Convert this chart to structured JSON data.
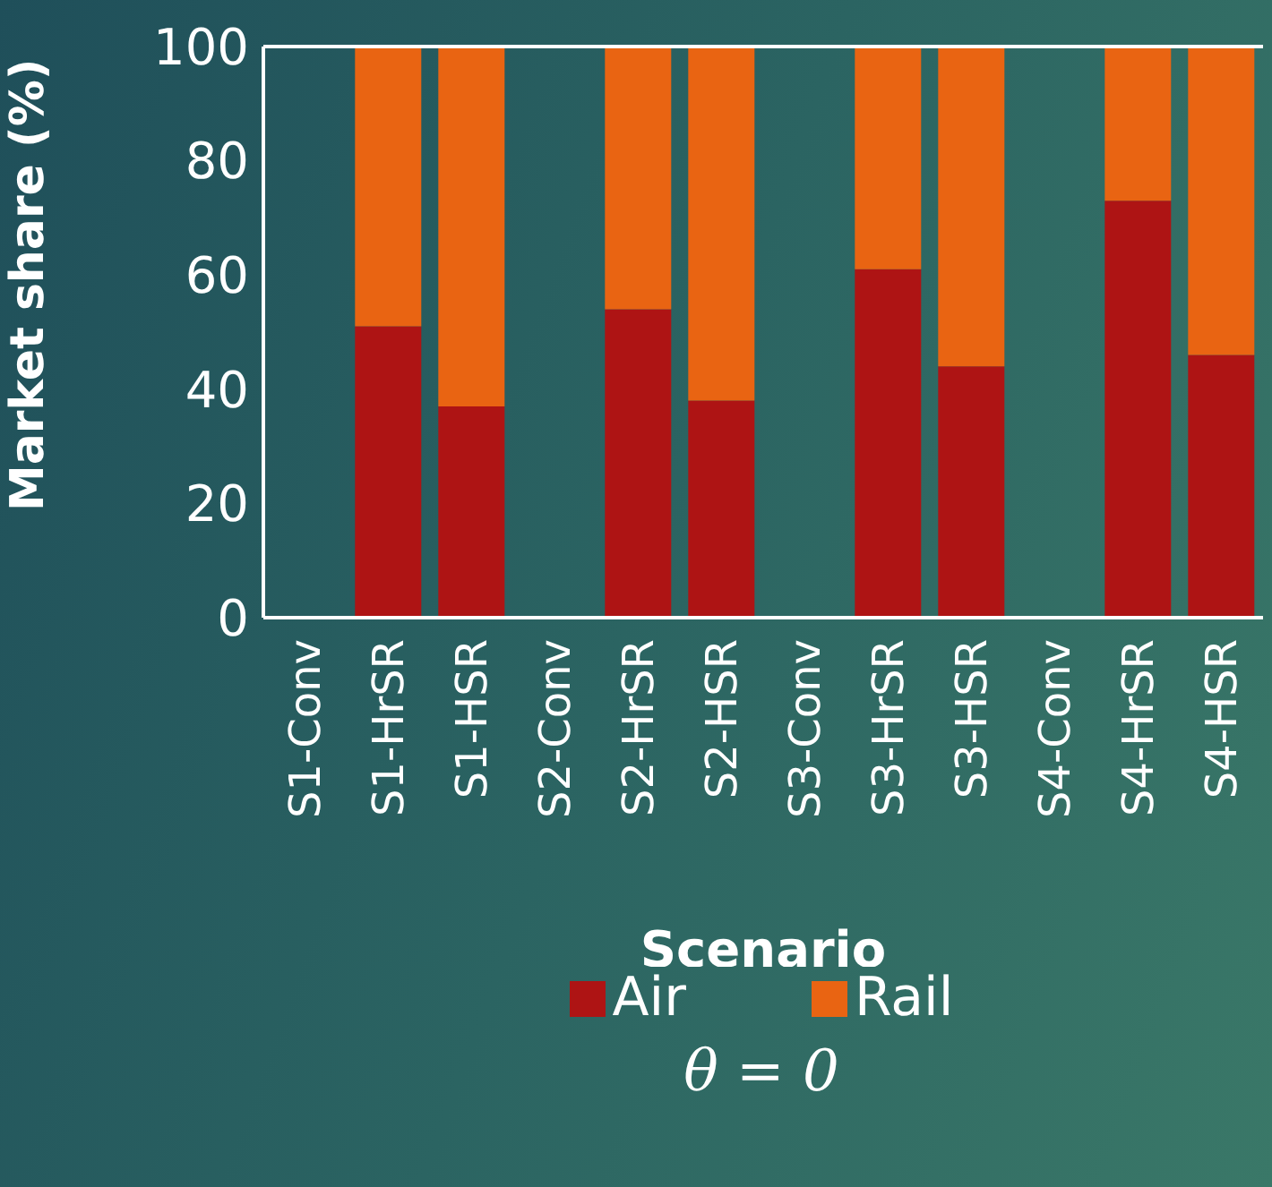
{
  "chart_data": {
    "type": "bar",
    "stacked": true,
    "xlabel": "Scenario",
    "ylabel": "Market share (%)",
    "categories": [
      "S1-Conv",
      "S1-HrSR",
      "S1-HSR",
      "S2-Conv",
      "S2-HrSR",
      "S2-HSR",
      "S3-Conv",
      "S3-HrSR",
      "S3-HSR",
      "S4-Conv",
      "S4-HrSR",
      "S4-HSR"
    ],
    "series": [
      {
        "name": "Air",
        "color": "#ae1414",
        "values": [
          null,
          51,
          37,
          null,
          54,
          38,
          null,
          61,
          44,
          null,
          73,
          46
        ]
      },
      {
        "name": "Rail",
        "color": "#e96412",
        "values": [
          null,
          49,
          63,
          null,
          46,
          62,
          null,
          39,
          56,
          null,
          27,
          54
        ]
      }
    ],
    "ylim": [
      0,
      100
    ],
    "yticks": [
      0,
      20,
      40,
      60,
      80,
      100
    ],
    "legend": "bottom",
    "annotations": [
      "θ = 0"
    ]
  }
}
